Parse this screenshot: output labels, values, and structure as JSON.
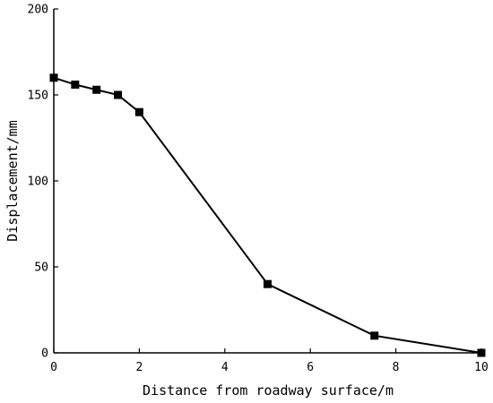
{
  "chart_data": {
    "type": "line",
    "title": "",
    "xlabel": "Distance from roadway surface/m",
    "ylabel": "Displacement/mm",
    "xlim": [
      0,
      10
    ],
    "ylim": [
      0,
      200
    ],
    "x_ticks": [
      0,
      2,
      4,
      6,
      8,
      10
    ],
    "y_ticks": [
      0,
      50,
      100,
      150,
      200
    ],
    "grid": false,
    "legend": "none",
    "series": [
      {
        "marker": "square",
        "color": "#000000",
        "x": [
          0,
          0.5,
          1,
          1.5,
          2,
          5,
          7.5,
          10
        ],
        "y": [
          160,
          156,
          153,
          150,
          140,
          40,
          10,
          0
        ]
      }
    ]
  }
}
